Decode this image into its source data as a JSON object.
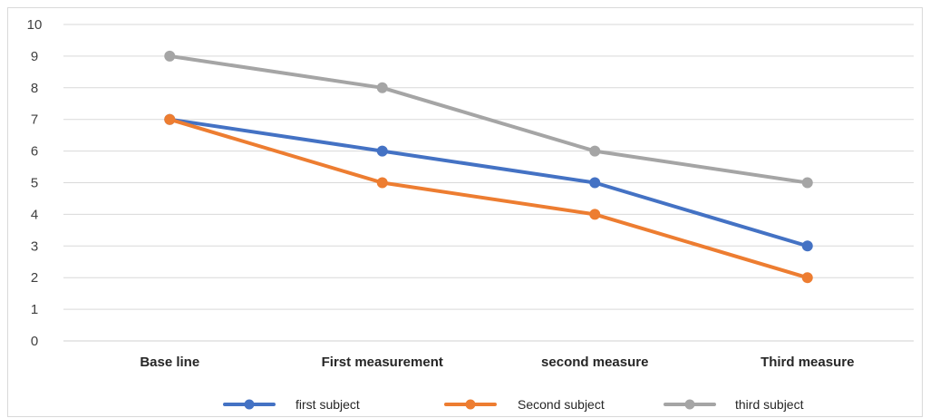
{
  "chart_data": {
    "type": "line",
    "title": "",
    "xlabel": "",
    "ylabel": "",
    "categories": [
      "Base line",
      "First measurement",
      "second measure",
      "Third measure"
    ],
    "ylim": [
      0,
      10
    ],
    "yticks": [
      0,
      1,
      2,
      3,
      4,
      5,
      6,
      7,
      8,
      9,
      10
    ],
    "grid": true,
    "legend_position": "bottom",
    "series": [
      {
        "name": "first subject",
        "values": [
          7,
          6,
          5,
          3
        ],
        "color": "#4472C4"
      },
      {
        "name": "Second subject",
        "values": [
          7,
          5,
          4,
          2
        ],
        "color": "#ED7D31"
      },
      {
        "name": "third subject",
        "values": [
          9,
          8,
          6,
          5
        ],
        "color": "#A5A5A5"
      }
    ]
  }
}
